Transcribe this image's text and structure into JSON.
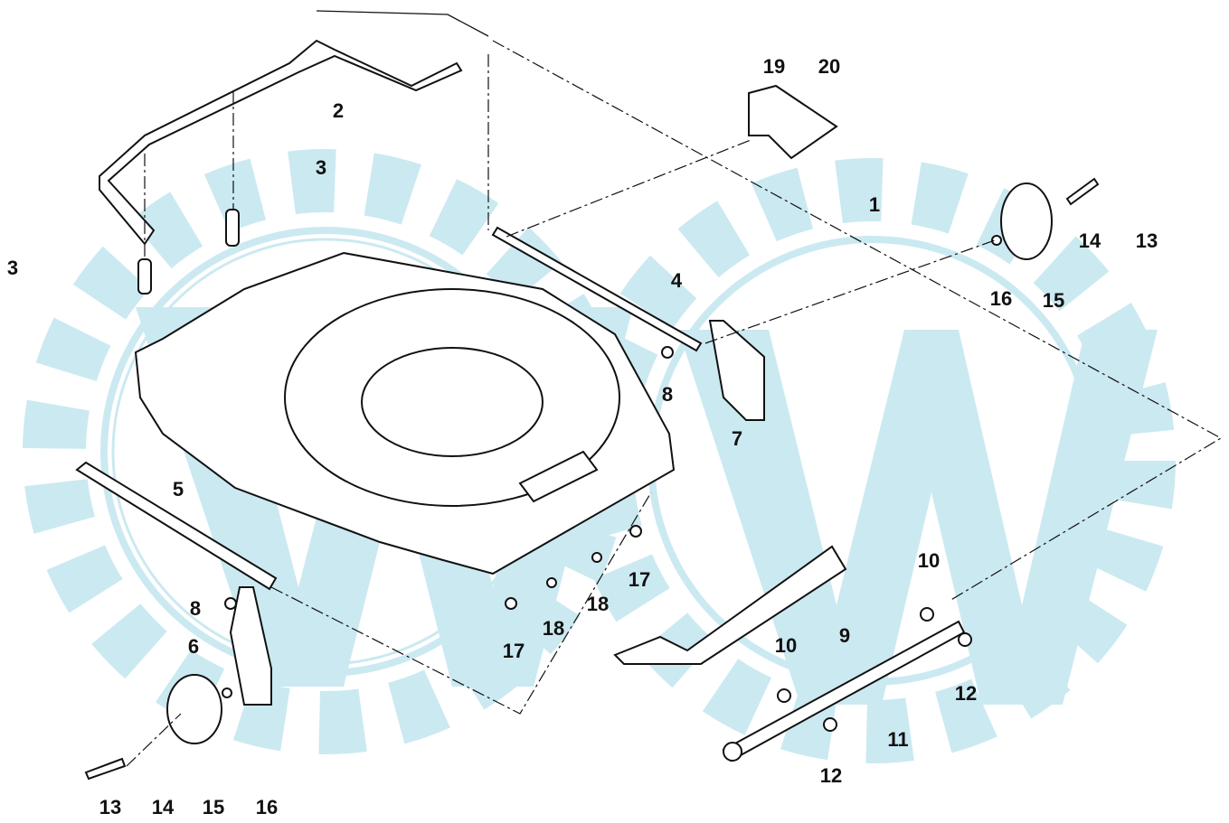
{
  "callouts": [
    "1",
    "2",
    "3",
    "3",
    "4",
    "8",
    "7",
    "19",
    "20",
    "14",
    "13",
    "16",
    "15",
    "5",
    "8",
    "6",
    "10",
    "9",
    "10",
    "12",
    "11",
    "12",
    "17",
    "18",
    "17",
    "18",
    "13",
    "14",
    "15",
    "16"
  ]
}
